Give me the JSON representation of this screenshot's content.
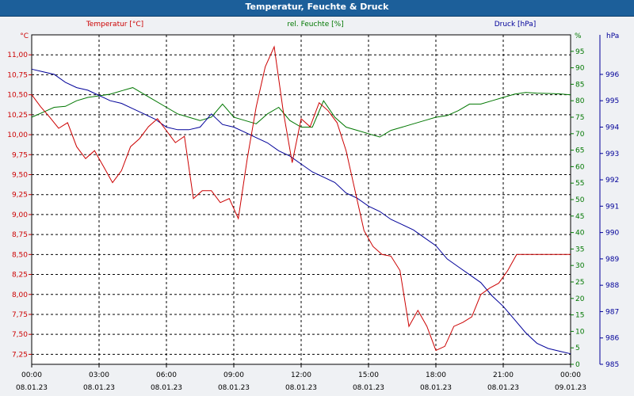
{
  "chart_data": {
    "type": "line",
    "title": "Temperatur, Feuchte & Druck",
    "series": [
      {
        "name": "Temperatur [°C]",
        "unit": "°C",
        "color": "#cc0000",
        "axis": "left",
        "ylim": [
          7.125,
          11.25
        ],
        "ticks": [
          "11,00",
          "10,75",
          "10,50",
          "10,25",
          "10,00",
          "9,75",
          "9,50",
          "9,25",
          "9,00",
          "8,75",
          "8,50",
          "8,25",
          "8,00",
          "7,75",
          "7,50",
          "7,25"
        ],
        "tick_values": [
          11.0,
          10.75,
          10.5,
          10.25,
          10.0,
          9.75,
          9.5,
          9.25,
          9.0,
          8.75,
          8.5,
          8.25,
          8.0,
          7.75,
          7.5,
          7.25
        ],
        "x": [
          0,
          0.4,
          0.8,
          1.2,
          1.6,
          2.0,
          2.4,
          2.8,
          3.2,
          3.6,
          4.0,
          4.4,
          4.8,
          5.2,
          5.6,
          6.0,
          6.4,
          6.8,
          7.2,
          7.6,
          8.0,
          8.4,
          8.8,
          9.2,
          9.6,
          10.0,
          10.4,
          10.8,
          11.2,
          11.6,
          12.0,
          12.4,
          12.8,
          13.2,
          13.6,
          14.0,
          14.4,
          14.8,
          15.2,
          15.6,
          16.0,
          16.4,
          16.8,
          17.2,
          17.6,
          18.0,
          18.4,
          18.8,
          19.2,
          19.6,
          20.0,
          20.4,
          20.8,
          21.2,
          21.6,
          22.0,
          22.4,
          22.8,
          23.2,
          23.6,
          24.0
        ],
        "values": [
          10.5,
          10.35,
          10.22,
          10.08,
          10.15,
          9.85,
          9.7,
          9.8,
          9.6,
          9.4,
          9.55,
          9.85,
          9.95,
          10.1,
          10.2,
          10.05,
          9.9,
          9.98,
          9.2,
          9.3,
          9.3,
          9.15,
          9.2,
          8.95,
          9.7,
          10.35,
          10.85,
          11.1,
          10.3,
          9.65,
          10.2,
          10.1,
          10.4,
          10.3,
          10.15,
          9.8,
          9.3,
          8.8,
          8.6,
          8.5,
          8.48,
          8.3,
          7.6,
          7.8,
          7.6,
          7.3,
          7.35,
          7.6,
          7.65,
          7.72,
          8.0,
          8.08,
          8.14,
          8.3,
          8.5,
          8.5,
          8.5,
          8.5,
          8.5,
          8.5,
          8.5
        ]
      },
      {
        "name": "rel. Feuchte [%]",
        "unit": "%",
        "color": "#007700",
        "axis": "right",
        "ylim": [
          0,
          100
        ],
        "ticks": [
          "95",
          "90",
          "85",
          "80",
          "75",
          "70",
          "65",
          "60",
          "55",
          "50",
          "45",
          "40",
          "35",
          "30",
          "25",
          "20",
          "15",
          "10",
          "5",
          "0"
        ],
        "tick_values": [
          95,
          90,
          85,
          80,
          75,
          70,
          65,
          60,
          55,
          50,
          45,
          40,
          35,
          30,
          25,
          20,
          15,
          10,
          5,
          0
        ],
        "x": [
          0,
          0.5,
          1.0,
          1.5,
          2.0,
          2.5,
          3.0,
          3.5,
          4.0,
          4.5,
          5.0,
          5.5,
          6.0,
          6.5,
          7.0,
          7.5,
          8.0,
          8.5,
          9.0,
          9.5,
          10.0,
          10.5,
          11.0,
          11.5,
          12.0,
          12.5,
          13.0,
          13.5,
          14.0,
          14.5,
          15.0,
          15.5,
          16.0,
          16.5,
          17.0,
          17.5,
          18.0,
          18.5,
          19.0,
          19.5,
          20.0,
          20.5,
          21.0,
          21.5,
          22.0,
          22.5,
          23.0,
          23.5,
          24.0
        ],
        "values": [
          75,
          76.5,
          78,
          78.3,
          80,
          81,
          81.5,
          82,
          83,
          84,
          82,
          80,
          78,
          76,
          75,
          74,
          75,
          79,
          75,
          74,
          73,
          76,
          78,
          74,
          72,
          72,
          80,
          75,
          72,
          71,
          70,
          69,
          71,
          72,
          73,
          74,
          75,
          75.5,
          77,
          79,
          79,
          80,
          81,
          82,
          82.5,
          82.3,
          82.2,
          82.1,
          81.8
        ]
      },
      {
        "name": "Druck [hPa]",
        "unit": "hPa",
        "color": "#000099",
        "axis": "far-right",
        "ylim": [
          985,
          997.5
        ],
        "ticks": [
          "996",
          "995",
          "994",
          "993",
          "992",
          "991",
          "990",
          "989",
          "988",
          "987",
          "986",
          "985"
        ],
        "tick_values": [
          996,
          995,
          994,
          993,
          992,
          991,
          990,
          989,
          988,
          987,
          986,
          985
        ],
        "x": [
          0,
          0.5,
          1.0,
          1.5,
          2.0,
          2.5,
          3.0,
          3.5,
          4.0,
          4.5,
          5.0,
          5.5,
          6.0,
          6.5,
          7.0,
          7.5,
          8.0,
          8.5,
          9.0,
          9.5,
          10.0,
          10.5,
          11.0,
          11.5,
          12.0,
          12.5,
          13.0,
          13.5,
          14.0,
          14.5,
          15.0,
          15.5,
          16.0,
          16.5,
          17.0,
          17.5,
          18.0,
          18.5,
          19.0,
          19.5,
          20.0,
          20.5,
          21.0,
          21.5,
          22.0,
          22.5,
          23.0,
          23.5,
          24.0
        ],
        "values": [
          996.2,
          996.1,
          996.0,
          995.7,
          995.5,
          995.4,
          995.2,
          995.0,
          994.9,
          994.7,
          994.5,
          994.3,
          994.0,
          993.9,
          993.9,
          994.0,
          994.5,
          994.1,
          994.0,
          993.8,
          993.6,
          993.4,
          993.1,
          992.9,
          992.6,
          992.3,
          992.1,
          991.9,
          991.5,
          991.3,
          991.0,
          990.8,
          990.5,
          990.3,
          990.1,
          989.8,
          989.5,
          989.0,
          988.7,
          988.4,
          988.1,
          987.6,
          987.2,
          986.7,
          986.2,
          985.8,
          985.6,
          985.5,
          985.4
        ]
      }
    ],
    "x_axis": {
      "xlim": [
        0,
        24
      ],
      "tick_values": [
        0,
        3,
        6,
        9,
        12,
        15,
        18,
        21,
        24
      ],
      "tick_times": [
        "00:00",
        "03:00",
        "06:00",
        "09:00",
        "12:00",
        "15:00",
        "18:00",
        "21:00",
        "00:00"
      ],
      "tick_dates": [
        "08.01.23",
        "08.01.23",
        "08.01.23",
        "08.01.23",
        "08.01.23",
        "08.01.23",
        "08.01.23",
        "08.01.23",
        "09.01.23"
      ]
    },
    "grid": true
  }
}
